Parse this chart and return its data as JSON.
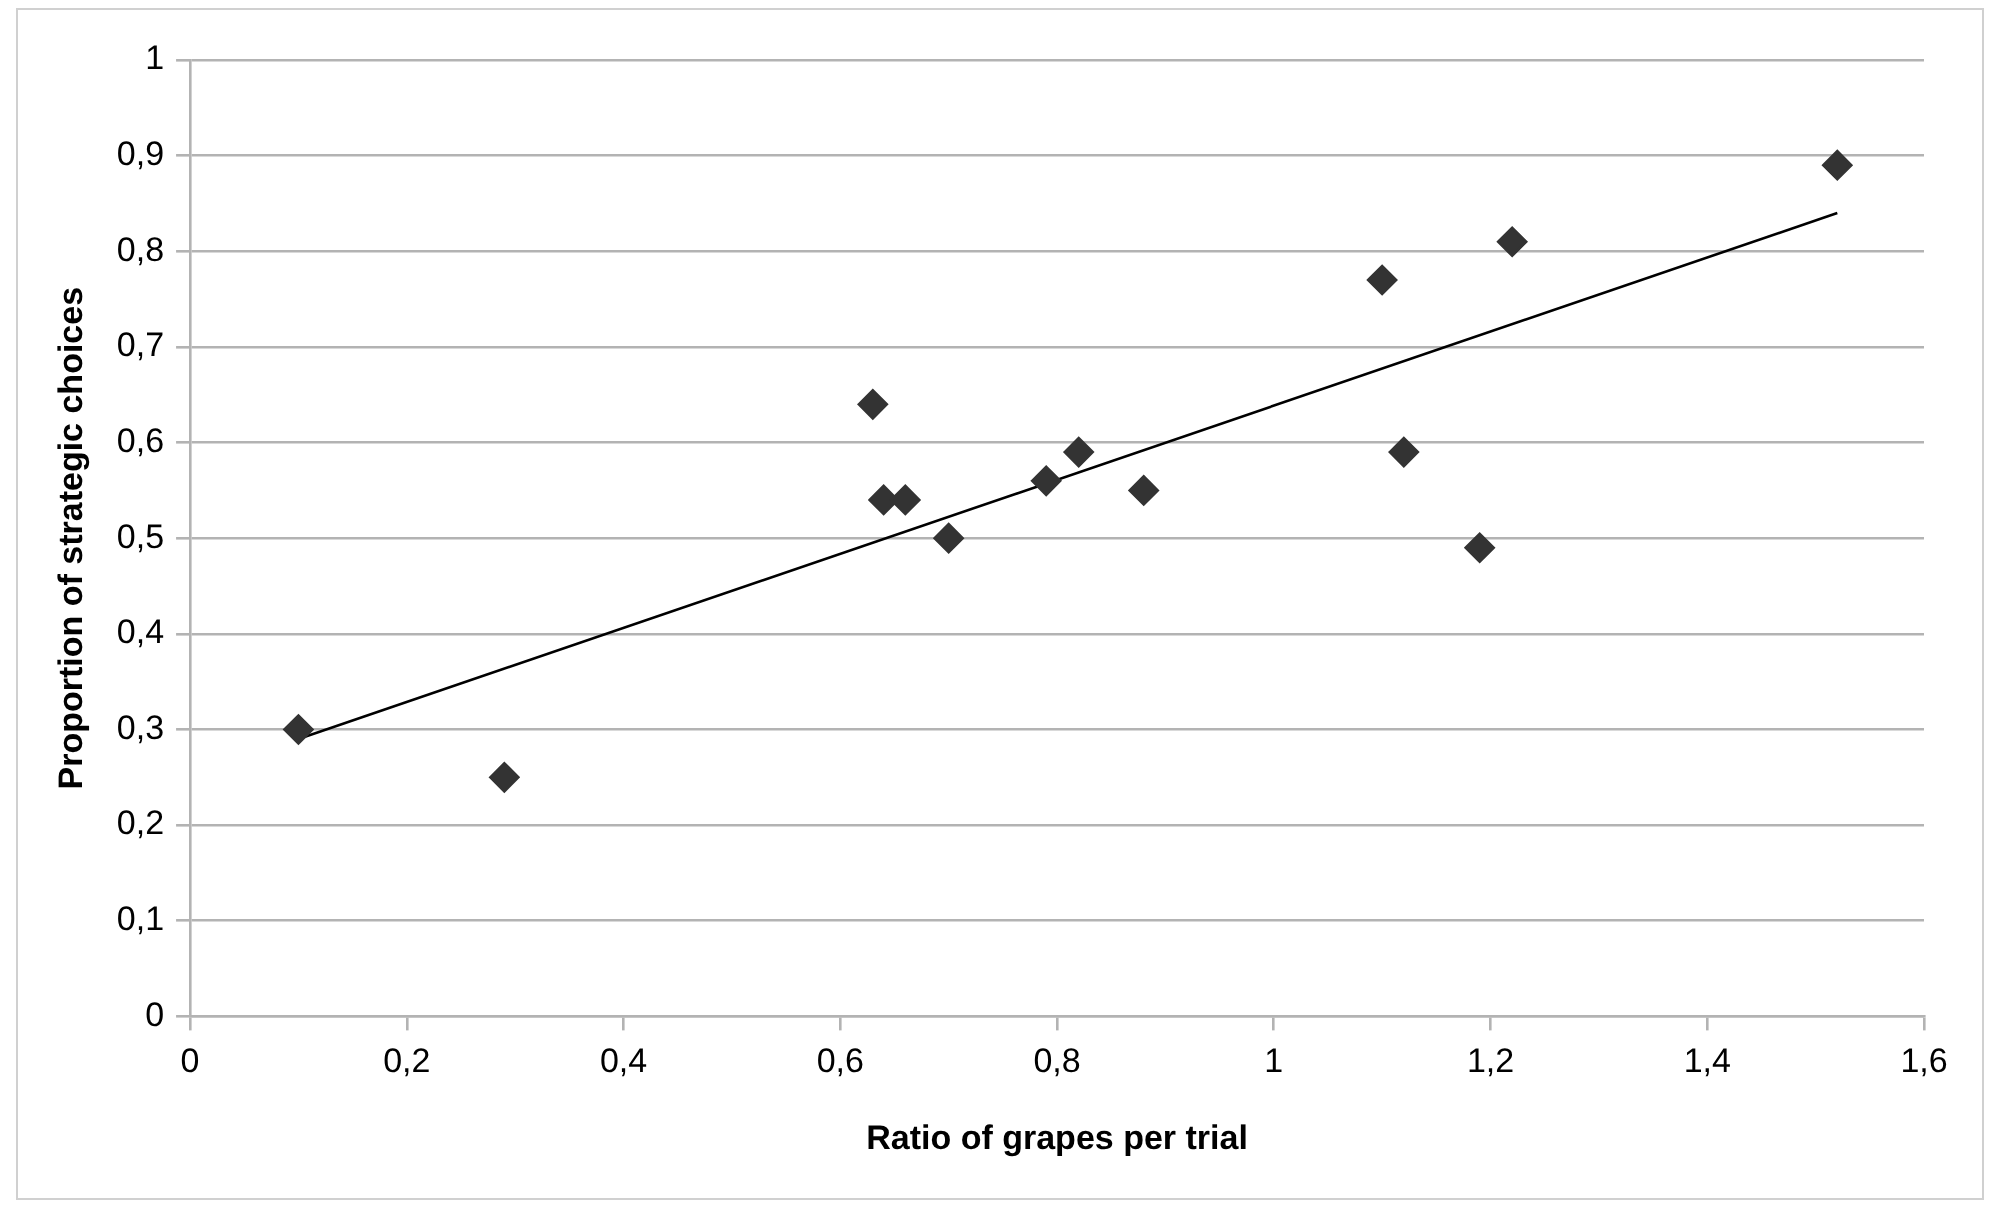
{
  "chart_data": {
    "type": "scatter",
    "xlabel": "Ratio of grapes per trial",
    "ylabel": "Proportion of strategic choices",
    "series": [
      {
        "color": "#333333",
        "marker": "diamond",
        "x": [
          0.1,
          0.29,
          0.63,
          0.64,
          0.66,
          0.7,
          0.79,
          0.82,
          0.88,
          1.1,
          1.12,
          1.19,
          1.22,
          1.52
        ],
        "values": [
          0.3,
          0.25,
          0.64,
          0.54,
          0.54,
          0.5,
          0.56,
          0.59,
          0.55,
          0.77,
          0.59,
          0.49,
          0.81,
          0.89
        ]
      },
      {
        "type": "line",
        "color": "#000000",
        "marker": "none",
        "x": [
          0.1,
          1.52
        ],
        "values": [
          0.29,
          0.84
        ]
      }
    ],
    "xlim": [
      0,
      1.6
    ],
    "xticks": [
      0,
      {
        "value": 0.2,
        "label": "0,2"
      },
      {
        "value": 0.4,
        "label": "0,4"
      },
      {
        "value": 0.6,
        "label": "0,6"
      },
      {
        "value": 0.8,
        "label": "0,8"
      },
      1,
      {
        "value": 1.2,
        "label": "1,2"
      },
      {
        "value": 1.4,
        "label": "1,4"
      },
      {
        "value": 1.6,
        "label": "1,6"
      }
    ],
    "ylim": [
      0,
      1
    ],
    "yticks": [
      0,
      {
        "value": 0.1,
        "label": "0,1"
      },
      {
        "value": 0.2,
        "label": "0,2"
      },
      {
        "value": 0.3,
        "label": "0,3"
      },
      {
        "value": 0.4,
        "label": "0,4"
      },
      {
        "value": 0.5,
        "label": "0,5"
      },
      {
        "value": 0.6,
        "label": "0,6"
      },
      {
        "value": 0.7,
        "label": "0,7"
      },
      {
        "value": 0.8,
        "label": "0,8"
      },
      {
        "value": 0.9,
        "label": "0,9"
      },
      1
    ],
    "grid": "y",
    "legend": false
  }
}
